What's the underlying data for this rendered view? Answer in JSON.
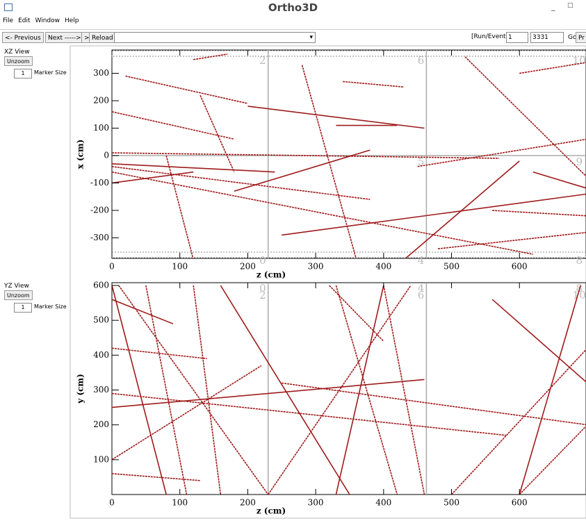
{
  "window": {
    "title": "Ortho3D"
  },
  "menu": [
    "File",
    "Edit",
    "Window",
    "Help"
  ],
  "toolbar": {
    "previous": "<- Previous",
    "next": "Next ----->",
    "forward": ">",
    "reload": "Reload",
    "run_event_label": "[Run/Event]=",
    "run": "1",
    "event": "3331",
    "go": "Go",
    "print": "Pr"
  },
  "panels": [
    {
      "title": "XZ View",
      "unzoom": "Unzoom",
      "marker_size": "1",
      "marker_size_label": "Marker Size"
    },
    {
      "title": "YZ View",
      "unzoom": "Unzoom",
      "marker_size": "1",
      "marker_size_label": "Marker Size"
    }
  ],
  "chart_data": [
    {
      "type": "tracks",
      "xlabel": "z (cm)",
      "ylabel": "x (cm)",
      "xlim": [
        0,
        698
      ],
      "ylim": [
        -375,
        385
      ],
      "xticks": [
        0,
        100,
        200,
        300,
        400,
        500,
        600
      ],
      "yticks": [
        -300,
        -200,
        -100,
        0,
        100,
        200,
        300
      ],
      "color": "#9e1a1a",
      "dividers_x": [
        230,
        463
      ],
      "dividers_y": [
        0
      ],
      "region_labels": [
        {
          "text": "2",
          "x": 222,
          "y": 345
        },
        {
          "text": "6",
          "x": 455,
          "y": 345
        },
        {
          "text": "10",
          "x": 688,
          "y": 345
        },
        {
          "text": "5",
          "x": 455,
          "y": -25
        },
        {
          "text": "9",
          "x": 688,
          "y": -25
        },
        {
          "text": "0",
          "x": 222,
          "y": -385
        },
        {
          "text": "4",
          "x": 455,
          "y": -385
        },
        {
          "text": "8",
          "x": 688,
          "y": -385
        }
      ],
      "tracks": [
        [
          0,
          -30,
          240,
          -60
        ],
        [
          0,
          -40,
          380,
          -160
        ],
        [
          0,
          -60,
          620,
          -360
        ],
        [
          0,
          -100,
          120,
          -60
        ],
        [
          0,
          160,
          180,
          60
        ],
        [
          20,
          290,
          200,
          190
        ],
        [
          180,
          -130,
          380,
          20
        ],
        [
          80,
          0,
          120,
          -380
        ],
        [
          0,
          10,
          570,
          -10
        ],
        [
          330,
          110,
          420,
          110
        ],
        [
          600,
          300,
          700,
          340
        ],
        [
          450,
          -40,
          700,
          60
        ],
        [
          250,
          -290,
          700,
          -140
        ],
        [
          480,
          -340,
          700,
          -280
        ],
        [
          130,
          220,
          180,
          -60
        ],
        [
          430,
          -380,
          600,
          -20
        ],
        [
          520,
          360,
          700,
          -80
        ],
        [
          280,
          330,
          360,
          -380
        ],
        [
          620,
          -60,
          700,
          -120
        ],
        [
          120,
          350,
          170,
          370
        ],
        [
          340,
          270,
          430,
          250
        ],
        [
          200,
          180,
          460,
          100
        ],
        [
          560,
          -200,
          700,
          -220
        ]
      ]
    },
    {
      "type": "tracks",
      "xlabel": "z (cm)",
      "ylabel": "y (cm)",
      "xlim": [
        0,
        698
      ],
      "ylim": [
        0,
        608
      ],
      "xticks": [
        0,
        100,
        200,
        300,
        400,
        500,
        600
      ],
      "yticks": [
        100,
        200,
        300,
        400,
        500,
        600
      ],
      "color": "#9e1a1a",
      "dividers_x": [
        230,
        463
      ],
      "dividers_y": [],
      "region_labels": [
        {
          "text": "0",
          "x": 222,
          "y": 590
        },
        {
          "text": "4",
          "x": 455,
          "y": 590
        },
        {
          "text": "8",
          "x": 688,
          "y": 590
        },
        {
          "text": "2",
          "x": 222,
          "y": 570
        },
        {
          "text": "6",
          "x": 455,
          "y": 570
        },
        {
          "text": "10",
          "x": 688,
          "y": 570
        }
      ],
      "tracks": [
        [
          0,
          600,
          80,
          0
        ],
        [
          50,
          600,
          110,
          0
        ],
        [
          120,
          600,
          160,
          0
        ],
        [
          0,
          560,
          90,
          490
        ],
        [
          0,
          420,
          140,
          390
        ],
        [
          10,
          600,
          230,
          0
        ],
        [
          160,
          600,
          350,
          0
        ],
        [
          0,
          100,
          220,
          370
        ],
        [
          0,
          290,
          580,
          170
        ],
        [
          0,
          250,
          460,
          330
        ],
        [
          330,
          600,
          420,
          0
        ],
        [
          320,
          600,
          400,
          440
        ],
        [
          330,
          0,
          400,
          600
        ],
        [
          500,
          0,
          700,
          420
        ],
        [
          400,
          600,
          460,
          0
        ],
        [
          560,
          560,
          700,
          320
        ],
        [
          600,
          0,
          700,
          200
        ],
        [
          230,
          0,
          440,
          600
        ],
        [
          690,
          600,
          600,
          0
        ],
        [
          250,
          320,
          700,
          200
        ],
        [
          0,
          60,
          130,
          40
        ]
      ]
    }
  ]
}
